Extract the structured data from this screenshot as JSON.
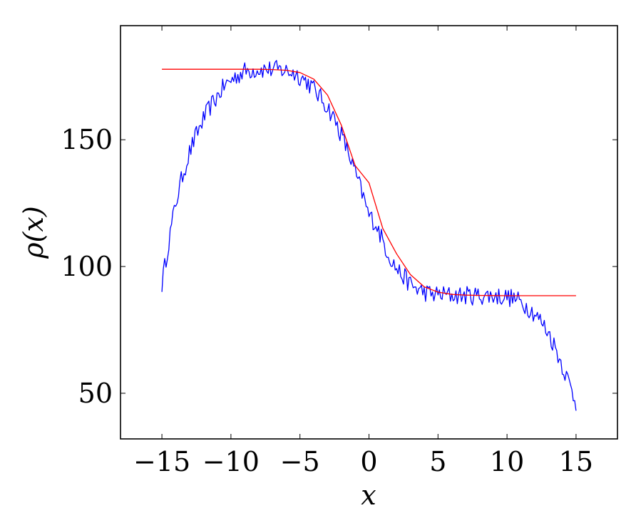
{
  "chart_data": {
    "type": "line",
    "title": "",
    "xlabel": "x",
    "ylabel": "ρ(x)",
    "xlim": [
      -18,
      18
    ],
    "ylim": [
      32,
      195
    ],
    "xticks": [
      -15,
      -10,
      -5,
      0,
      5,
      10,
      15
    ],
    "xtick_labels": [
      "−15",
      "−10",
      "−5",
      "0",
      "5",
      "10",
      "15"
    ],
    "yticks": [
      50,
      100,
      150
    ],
    "ytick_labels": [
      "50",
      "100",
      "150"
    ],
    "grid": false,
    "legend": "none",
    "series": [
      {
        "color": "#0000ff",
        "style": "noisy",
        "x": [
          -15,
          -14.5,
          -14,
          -13.5,
          -13,
          -12.5,
          -12,
          -11.5,
          -11,
          -10.5,
          -10,
          -9.5,
          -9,
          -8.5,
          -8,
          -7.5,
          -7,
          -6.5,
          -6,
          -5.5,
          -5,
          -4.5,
          -4,
          -3.5,
          -3,
          -2.5,
          -2,
          -1.5,
          -1,
          -0.5,
          0,
          0.5,
          1,
          1.5,
          2,
          2.5,
          3,
          3.5,
          4,
          4.5,
          5,
          5.5,
          6,
          6.5,
          7,
          7.5,
          8,
          8.5,
          9,
          9.5,
          10,
          10.5,
          11,
          11.5,
          12,
          12.5,
          13,
          13.5,
          14,
          14.5,
          15
        ],
        "y": [
          93,
          110,
          125,
          136,
          145,
          152,
          158,
          163,
          167,
          171,
          173.5,
          175.5,
          177,
          177.5,
          177.8,
          177.8,
          177.7,
          177.6,
          177.2,
          176.5,
          175,
          173,
          170,
          166.5,
          163,
          158,
          152,
          145,
          137,
          129,
          120,
          117,
          110,
          104,
          99,
          96,
          93,
          91,
          90,
          89,
          89,
          88.8,
          88.7,
          88.6,
          88.6,
          88.5,
          88.5,
          88.5,
          88.4,
          88.2,
          88,
          87.3,
          86,
          84,
          81.5,
          78,
          74,
          68,
          61,
          54,
          46
        ]
      },
      {
        "color": "#ff0000",
        "style": "smooth",
        "x": [
          -15,
          -14,
          -13,
          -12,
          -11,
          -10,
          -9,
          -8,
          -7,
          -6,
          -5,
          -4,
          -3,
          -2,
          -1,
          0,
          1,
          2,
          3,
          4,
          5,
          6,
          7,
          8,
          9,
          10,
          11,
          12,
          13,
          14,
          15
        ],
        "y": [
          177.8,
          177.8,
          177.8,
          177.8,
          177.8,
          177.8,
          177.8,
          177.8,
          177.7,
          177.4,
          176.5,
          173.9,
          167.6,
          155.7,
          139.8,
          133,
          115,
          105,
          96.8,
          92,
          89.9,
          89,
          88.7,
          88.6,
          88.55,
          88.5,
          88.5,
          88.5,
          88.5,
          88.5,
          88.5
        ]
      }
    ]
  }
}
